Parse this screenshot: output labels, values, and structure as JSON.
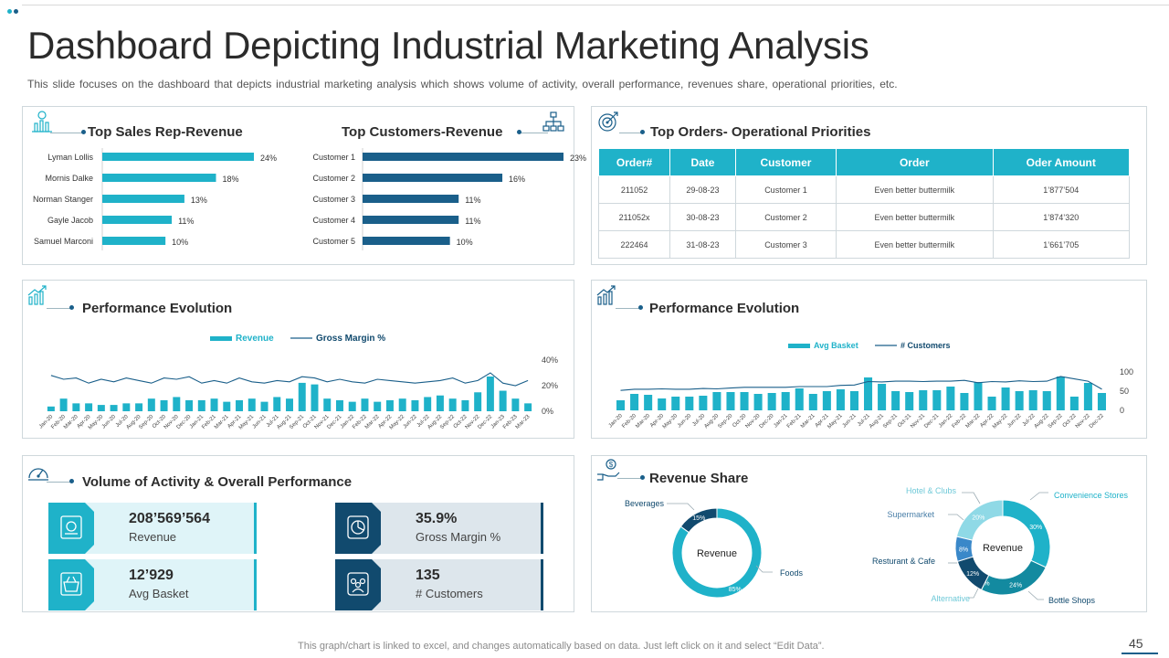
{
  "colors": {
    "teal": "#1fb2c9",
    "navy": "#1a5f8a",
    "light_teal": "#dff4f8",
    "light_grey": "#dde6ec",
    "dark_navy": "#114a6e"
  },
  "header": {
    "title": "Dashboard Depicting Industrial Marketing Analysis",
    "subtitle": "This slide focuses on the dashboard that depicts industrial marketing analysis which shows volume of activity, overall performance, revenues share, operational priorities, etc."
  },
  "panels": {
    "sales_rep_title": "Top Sales Rep-Revenue",
    "customers_title": "Top Customers-Revenue",
    "orders_title": "Top Orders- Operational Priorities",
    "perf1_title": "Performance Evolution",
    "perf2_title": "Performance Evolution",
    "volume_title": "Volume of Activity & Overall Performance",
    "revenue_share_title": "Revenue Share"
  },
  "orders_table": {
    "headers": [
      "Order#",
      "Date",
      "Customer",
      "Order",
      "Oder Amount"
    ],
    "rows": [
      [
        "211052",
        "29-08-23",
        "Customer 1",
        "Even better buttermilk",
        "1’877’504"
      ],
      [
        "211052x",
        "30-08-23",
        "Customer 2",
        "Even better buttermilk",
        "1’874’320"
      ],
      [
        "222464",
        "31-08-23",
        "Customer 3",
        "Even better buttermilk",
        "1’661’705"
      ]
    ]
  },
  "kpis": [
    {
      "value": "208’569’564",
      "label": "Revenue",
      "icon": "money-bag-icon"
    },
    {
      "value": "35.9%",
      "label": "Gross Margin %",
      "icon": "pie-chart-icon"
    },
    {
      "value": "12’929",
      "label": "Avg Basket",
      "icon": "basket-icon"
    },
    {
      "value": "135",
      "label": "# Customers",
      "icon": "people-icon"
    }
  ],
  "footer": {
    "note": "This graph/chart is linked to excel, and changes automatically based on data. Just left click on it and select “Edit Data”.",
    "page": "45"
  },
  "chart_data": [
    {
      "id": "sales_rep",
      "type": "bar",
      "orientation": "horizontal",
      "title": "Top Sales Rep-Revenue",
      "categories": [
        "Lyman Lollis",
        "Mornis Dalke",
        "Norman Stanger",
        "Gayle Jacob",
        "Samuel Marconi"
      ],
      "values": [
        24,
        18,
        13,
        11,
        10
      ],
      "labels": [
        "24%",
        "18%",
        "13%",
        "11%",
        "10%"
      ],
      "color": "#1fb2c9"
    },
    {
      "id": "customers",
      "type": "bar",
      "orientation": "horizontal",
      "title": "Top Customers-Revenue",
      "categories": [
        "Customer 1",
        "Customer 2",
        "Customer 3",
        "Customer 4",
        "Customer 5"
      ],
      "values": [
        23,
        16,
        11,
        11,
        10
      ],
      "labels": [
        "23%",
        "16%",
        "11%",
        "11%",
        "10%"
      ],
      "color": "#1a5f8a"
    },
    {
      "id": "perf1",
      "type": "bar",
      "title": "Performance Evolution",
      "legend": [
        "Revenue",
        "Gross Margin %"
      ],
      "categories": [
        "Jan-20",
        "Feb-20",
        "Mar-20",
        "Apr-20",
        "May-20",
        "Jun-20",
        "Jul-20",
        "Aug-20",
        "Sep-20",
        "Oct-20",
        "Nov-20",
        "Dec-20",
        "Jan-21",
        "Feb-21",
        "Mar-21",
        "Apr-21",
        "May-21",
        "Jun-21",
        "Jul-21",
        "Aug-21",
        "Sep-21",
        "Oct-21",
        "Nov-21",
        "Dec-21",
        "Jan-22",
        "Feb-22",
        "Mar-22",
        "Apr-22",
        "May-22",
        "Jun-22",
        "Jul-22",
        "Aug-22",
        "Sep-22",
        "Oct-22",
        "Nov-22",
        "Dec-22",
        "Jan-23",
        "Feb-23",
        "Mar-23"
      ],
      "series": [
        {
          "name": "Revenue",
          "type": "bar",
          "values": [
            3,
            8,
            5,
            5,
            4,
            4,
            5,
            5,
            8,
            7,
            9,
            7,
            7,
            8,
            6,
            7,
            8,
            6,
            9,
            8,
            18,
            17,
            8,
            7,
            6,
            8,
            6,
            7,
            8,
            7,
            9,
            10,
            8,
            7,
            12,
            22,
            13,
            8,
            5
          ]
        },
        {
          "name": "Gross Margin %",
          "type": "line",
          "axis": "right",
          "values": [
            28,
            25,
            26,
            22,
            25,
            23,
            26,
            24,
            22,
            26,
            25,
            27,
            22,
            24,
            22,
            26,
            23,
            22,
            24,
            23,
            27,
            26,
            23,
            25,
            23,
            22,
            25,
            24,
            23,
            22,
            23,
            24,
            26,
            22,
            24,
            30,
            22,
            20,
            24
          ]
        }
      ],
      "y2_ticks": [
        "40%",
        "20%",
        "0%"
      ],
      "y2lim": [
        0,
        40
      ]
    },
    {
      "id": "perf2",
      "type": "bar",
      "title": "Performance Evolution",
      "legend": [
        "Avg Basket",
        "# Customers"
      ],
      "categories": [
        "Jan-20",
        "Feb-20",
        "Mar-20",
        "Apr-20",
        "May-20",
        "Jun-20",
        "Jul-20",
        "Aug-20",
        "Sep-20",
        "Oct-20",
        "Nov-20",
        "Dec-20",
        "Jan-21",
        "Feb-21",
        "Mar-21",
        "Apr-21",
        "May-21",
        "Jun-21",
        "Jul-21",
        "Aug-21",
        "Sep-21",
        "Oct-21",
        "Nov-21",
        "Dec-21",
        "Jan-22",
        "Feb-22",
        "Mar-22",
        "Apr-22",
        "May-22",
        "Jun-22",
        "Jul-22",
        "Aug-22",
        "Sep-22",
        "Oct-22",
        "Nov-22",
        "Dec-22"
      ],
      "series": [
        {
          "name": "Avg Basket",
          "type": "bar",
          "values": [
            11,
            18,
            17,
            13,
            15,
            15,
            16,
            20,
            20,
            20,
            18,
            19,
            20,
            24,
            18,
            21,
            23,
            21,
            36,
            29,
            21,
            20,
            22,
            22,
            26,
            19,
            31,
            15,
            25,
            21,
            22,
            21,
            37,
            15,
            30,
            19
          ]
        },
        {
          "name": "# Customers",
          "type": "line",
          "axis": "right",
          "values": [
            52,
            55,
            55,
            56,
            55,
            55,
            57,
            56,
            58,
            60,
            60,
            60,
            60,
            62,
            62,
            62,
            65,
            66,
            75,
            74,
            76,
            76,
            75,
            76,
            76,
            78,
            72,
            75,
            74,
            77,
            75,
            76,
            88,
            82,
            76,
            55
          ]
        }
      ],
      "y2_ticks": [
        "100",
        "50",
        "0"
      ],
      "y2lim": [
        0,
        100
      ]
    },
    {
      "id": "rev_share_left",
      "type": "pie",
      "donut": true,
      "center_label": "Revenue",
      "slices": [
        {
          "label": "Beverages",
          "value": 15,
          "text": "15%"
        },
        {
          "label": "Foods",
          "value": 85,
          "text": "85%"
        }
      ]
    },
    {
      "id": "rev_share_right",
      "type": "pie",
      "donut": true,
      "center_label": "Revenue",
      "slices": [
        {
          "label": "Convenience Stores",
          "value": 30,
          "text": "30%"
        },
        {
          "label": "Bottle Shops",
          "value": 24,
          "text": "24%"
        },
        {
          "label": "Alternative",
          "value": 0,
          "text": "0%"
        },
        {
          "label": "Resturant & Cafe",
          "value": 12,
          "text": "12%"
        },
        {
          "label": "Supermarket",
          "value": 8,
          "text": "8%"
        },
        {
          "label": "Hotel & Clubs",
          "value": 20,
          "text": "20%"
        }
      ]
    }
  ]
}
